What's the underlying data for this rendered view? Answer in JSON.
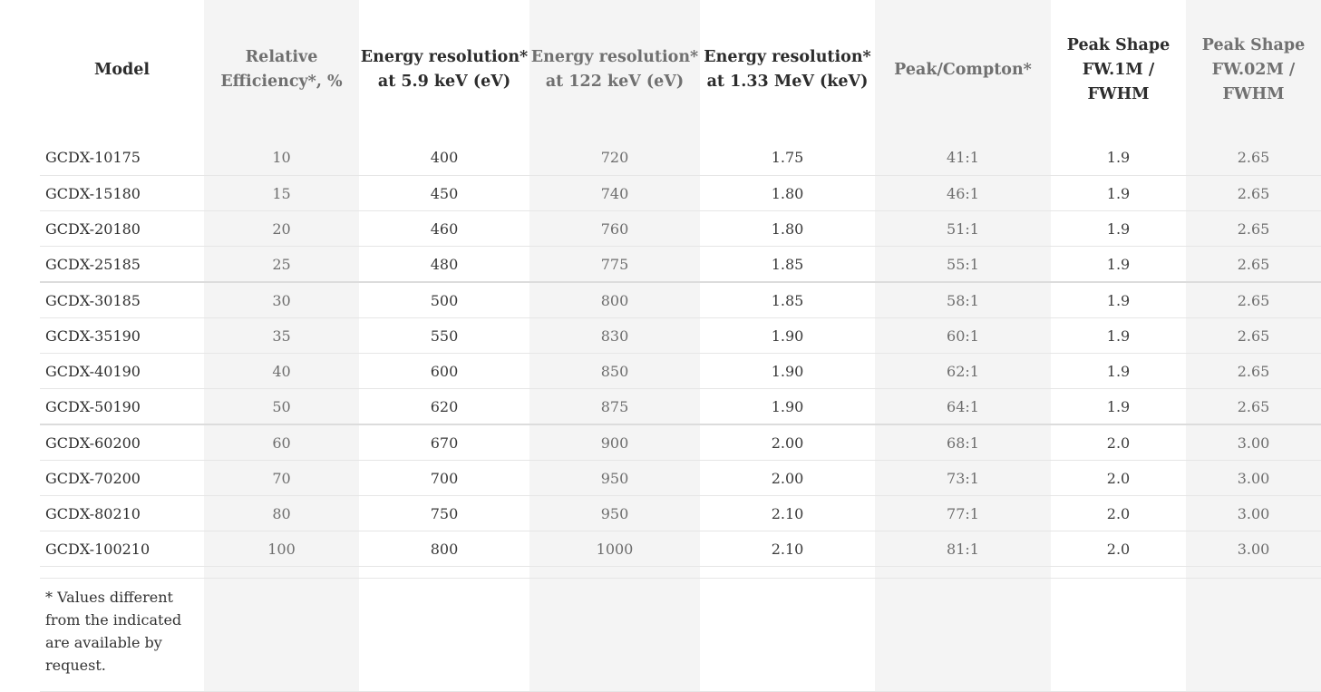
{
  "table": {
    "headers": [
      "Model",
      "Relative Efficiency*, %",
      "Energy resolution* at 5.9 keV (eV)",
      "Energy resolution* at 122 keV (eV)",
      "Energy resolution* at 1.33 MeV (keV)",
      "Peak/Compton*",
      "Peak Shape FW.1M / FWHM",
      "Peak Shape FW.02M / FWHM"
    ],
    "rows": [
      [
        "GCDX-10175",
        "10",
        "400",
        "720",
        "1.75",
        "41:1",
        "1.9",
        "2.65"
      ],
      [
        "GCDX-15180",
        "15",
        "450",
        "740",
        "1.80",
        "46:1",
        "1.9",
        "2.65"
      ],
      [
        "GCDX-20180",
        "20",
        "460",
        "760",
        "1.80",
        "51:1",
        "1.9",
        "2.65"
      ],
      [
        "GCDX-25185",
        "25",
        "480",
        "775",
        "1.85",
        "55:1",
        "1.9",
        "2.65"
      ],
      [
        "GCDX-30185",
        "30",
        "500",
        "800",
        "1.85",
        "58:1",
        "1.9",
        "2.65"
      ],
      [
        "GCDX-35190",
        "35",
        "550",
        "830",
        "1.90",
        "60:1",
        "1.9",
        "2.65"
      ],
      [
        "GCDX-40190",
        "40",
        "600",
        "850",
        "1.90",
        "62:1",
        "1.9",
        "2.65"
      ],
      [
        "GCDX-50190",
        "50",
        "620",
        "875",
        "1.90",
        "64:1",
        "1.9",
        "2.65"
      ],
      [
        "GCDX-60200",
        "60",
        "670",
        "900",
        "2.00",
        "68:1",
        "2.0",
        "3.00"
      ],
      [
        "GCDX-70200",
        "70",
        "700",
        "950",
        "2.00",
        "73:1",
        "2.0",
        "3.00"
      ],
      [
        "GCDX-80210",
        "80",
        "750",
        "950",
        "2.10",
        "77:1",
        "2.0",
        "3.00"
      ],
      [
        "GCDX-100210",
        "100",
        "800",
        "1000",
        "2.10",
        "81:1",
        "2.0",
        "3.00"
      ]
    ],
    "footnote": "* Values different from the indicated are available by request."
  },
  "colors": {
    "shaded_column": "#f4f4f4",
    "row_border": "#e6e6e6",
    "text": "#2f2f2f",
    "muted_text": "#6e6e6e"
  }
}
